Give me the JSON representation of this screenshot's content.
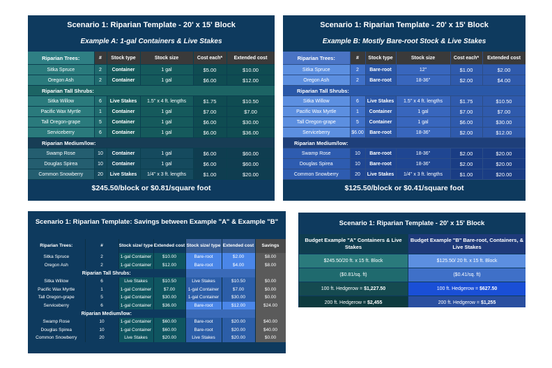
{
  "panel_a": {
    "title": "Scenario 1: Riparian Template - 20' x 15' Block",
    "subtitle": "Example A: 1-gal Containers & Live Stakes",
    "headers": [
      "Riparian Trees:",
      "#",
      "Stock type",
      "Stock size",
      "Cost each*",
      "Extended cost"
    ],
    "sections": [
      {
        "label": "Riparian Trees:",
        "rows": [
          [
            "Sitka Spruce",
            "2",
            "Container",
            "1 gal",
            "$5.00",
            "$10.00"
          ],
          [
            "Oregon Ash",
            "2",
            "Container",
            "1 gal",
            "$6.00",
            "$12.00"
          ]
        ]
      },
      {
        "label": "Riparian Tall Shrubs:",
        "rows": [
          [
            "Sitka Willow",
            "6",
            "Live Stakes",
            "1.5'' x 4 ft. lengths",
            "$1.75",
            "$10.50"
          ],
          [
            "Pacific Wax Myrtle",
            "1",
            "Container",
            "1 gal",
            "$7.00",
            "$7.00"
          ],
          [
            "Tall Oregon-grape",
            "5",
            "Container",
            "1 gal",
            "$6.00",
            "$30.00"
          ],
          [
            "Serviceberry",
            "6",
            "Container",
            "1 gal",
            "$6.00",
            "$36.00"
          ]
        ]
      },
      {
        "label": "Riparian Medium/low:",
        "rows": [
          [
            "Swamp Rose",
            "10",
            "Container",
            "1 gal",
            "$6.00",
            "$60.00"
          ],
          [
            "Douglas Spirea",
            "10",
            "Container",
            "1 gal",
            "$6.00",
            "$60.00"
          ],
          [
            "Common Snowberry",
            "20",
            "Live Stakes",
            "1/4'' x 3 ft. lengths",
            "$1.00",
            "$20.00"
          ]
        ]
      }
    ],
    "footer": "$245.50/block or $0.81/square foot"
  },
  "panel_b": {
    "title": "Scenario 1: Riparian Template - 20' x 15' Block",
    "subtitle": "Example B: Mostly Bare-root Stock & Live Stakes",
    "headers": [
      "Riparian Trees:",
      "#",
      "Stock type",
      "Stock size",
      "Cost each*",
      "Extended cost"
    ],
    "sections": [
      {
        "label": "Riparian Trees:",
        "rows": [
          [
            "Sitka Spruce",
            "2",
            "Bare-root",
            "12\"",
            "$1.00",
            "$2.00"
          ],
          [
            "Oregon Ash",
            "2",
            "Bare-root",
            "18-36\"",
            "$2.00",
            "$4.00"
          ]
        ]
      },
      {
        "label": "Riparian Tall Shrubs:",
        "rows": [
          [
            "Sitka Willow",
            "6",
            "Live Stakes",
            "1.5'' x 4 ft. lengths",
            "$1.75",
            "$10.50"
          ],
          [
            "Pacific Wax Myrtle",
            "1",
            "Container",
            "1 gal",
            "$7.00",
            "$7.00"
          ],
          [
            "Tall Oregon-grape",
            "5",
            "Container",
            "1 gal",
            "$6.00",
            "$30.00"
          ],
          [
            "Serviceberry",
            "$6.00",
            "Bare-root",
            "18-36\"",
            "$2.00",
            "$12.00"
          ]
        ]
      },
      {
        "label": "Riparian Medium/low:",
        "rows": [
          [
            "Swamp Rose",
            "10",
            "Bare-root",
            "18-36\"",
            "$2.00",
            "$20.00"
          ],
          [
            "Douglas Spirea",
            "10",
            "Bare-root",
            "18-36\"",
            "$2.00",
            "$20.00"
          ],
          [
            "Common Snowberry",
            "20",
            "Live Stakes",
            "1/4'' x 3 ft. lengths",
            "$1.00",
            "$20.00"
          ]
        ]
      }
    ],
    "footer": "$125.50/block or $0.41/square foot"
  },
  "panel_c": {
    "title": "Scenario 1: Riparian Template: Savings between Example \"A\" & Example \"B\"",
    "headers": [
      "Riparian Trees:",
      "#",
      "Stock size/ type",
      "Extended cost",
      "Stock size/ type",
      "Extended cost",
      "Savings"
    ],
    "sections": [
      {
        "label": "Riparian Trees:",
        "rows": [
          [
            "Sitka Spruce",
            "2",
            "1-gal Container",
            "$10.00",
            "Bare-root",
            "$2.00",
            "$8.00"
          ],
          [
            "Oregon Ash",
            "2",
            "1-gal Container",
            "$12.00",
            "Bare-root",
            "$4.00",
            "$8.00"
          ]
        ]
      },
      {
        "label": "Riparian Tall Shrubs:",
        "rows": [
          [
            "Sitka Willow",
            "6",
            "Live Stakes",
            "$10.50",
            "Live Stakes",
            "$10.50",
            "$0.00"
          ],
          [
            "Pacific Wax Myrtle",
            "1",
            "1-gal Container",
            "$7.00",
            "1-gal Container",
            "$7.00",
            "$0.00"
          ],
          [
            "Tall Oregon-grape",
            "5",
            "1-gal Container",
            "$30.00",
            "1-gal Container",
            "$30.00",
            "$0.00"
          ],
          [
            "Serviceberry",
            "6",
            "1-gal Container",
            "$36.00",
            "Bare-root",
            "$12.00",
            "$24.00"
          ]
        ]
      },
      {
        "label": "Riparian Medium/low:",
        "rows": [
          [
            "Swamp Rose",
            "10",
            "1-gal Container",
            "$60.00",
            "Bare-root",
            "$20.00",
            "$40.00"
          ],
          [
            "Douglas Spirea",
            "10",
            "1-gal Container",
            "$60.00",
            "Bare-root",
            "$20.00",
            "$40.00"
          ],
          [
            "Common Snowberry",
            "20",
            "Live Stakes",
            "$20.00",
            "Live Stakes",
            "$20.00",
            "$0.00"
          ]
        ]
      }
    ]
  },
  "panel_d": {
    "title": "Scenario 1: Riparian Template - 20' x 15' Block",
    "head_a": "Budget Example \"A\" Containers & Live Stakes",
    "head_b": "Budget Example \"B\" Bare-root, Containers, & Live Stakes",
    "rows": [
      {
        "a": "$245.50/20 ft. x 15 ft. Block",
        "b": "$125.50/ 20 ft. x 15 ft. Block"
      },
      {
        "a": "($0.81/sq. ft)",
        "b": "($0.41/sq. ft)"
      },
      {
        "a_pre": "100 ft. Hedgerow = ",
        "a_val": "$1,227.50",
        "b_pre": "100 ft. Hedgerow = ",
        "b_val": "$627.50"
      },
      {
        "a_pre": "200 ft. Hedgerow = ",
        "a_val": "$2,455",
        "b_pre": "200 ft. Hedgerow = ",
        "b_val": "$1,255"
      }
    ]
  }
}
